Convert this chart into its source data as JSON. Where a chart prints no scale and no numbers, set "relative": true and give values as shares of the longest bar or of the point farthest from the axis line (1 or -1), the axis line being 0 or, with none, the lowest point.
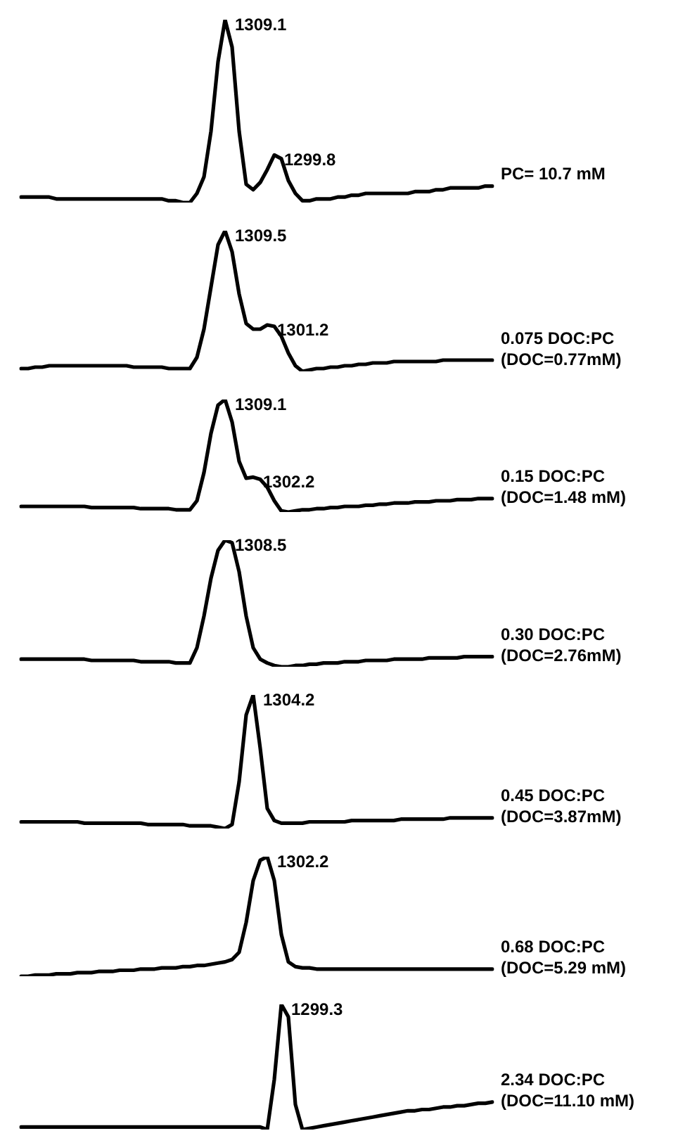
{
  "chart_data": [
    {
      "type": "line",
      "relative": true,
      "color": "#000000",
      "categories": [
        null,
        null,
        null,
        null,
        null,
        null,
        null,
        null,
        null,
        null,
        null,
        null,
        null,
        null,
        null,
        null,
        null,
        null,
        null,
        null,
        null,
        null,
        null,
        null,
        null,
        null,
        null,
        null,
        null,
        null,
        null,
        null,
        null,
        null,
        null,
        null,
        null,
        null,
        null,
        null,
        null,
        null,
        null,
        null,
        null,
        null,
        null,
        null,
        null,
        null,
        null,
        null,
        null,
        null,
        null,
        null,
        null,
        null,
        null,
        null,
        null,
        null,
        null,
        null,
        null,
        null,
        null,
        null
      ],
      "values": [
        0.03,
        0.03,
        0.03,
        0.03,
        0.03,
        0.02,
        0.02,
        0.02,
        0.02,
        0.02,
        0.02,
        0.02,
        0.02,
        0.02,
        0.02,
        0.02,
        0.02,
        0.02,
        0.02,
        0.02,
        0.02,
        0.01,
        0.01,
        0,
        0,
        0.05,
        0.14,
        0.39,
        0.77,
        1,
        0.85,
        0.39,
        0.1,
        0.07,
        0.11,
        0.18,
        0.26,
        0.24,
        0.12,
        0.05,
        0.01,
        0.01,
        0.02,
        0.02,
        0.02,
        0.03,
        0.03,
        0.04,
        0.04,
        0.05,
        0.05,
        0.05,
        0.05,
        0.05,
        0.05,
        0.05,
        0.06,
        0.06,
        0.06,
        0.07,
        0.07,
        0.08,
        0.08,
        0.08,
        0.08,
        0.08,
        0.09,
        0.09
      ],
      "title": "PC= 10.7 mM",
      "annotations": [
        "1309.1",
        "1299.8"
      ]
    },
    {
      "type": "line",
      "relative": true,
      "color": "#000000",
      "categories": [
        null,
        null,
        null,
        null,
        null,
        null,
        null,
        null,
        null,
        null,
        null,
        null,
        null,
        null,
        null,
        null,
        null,
        null,
        null,
        null,
        null,
        null,
        null,
        null,
        null,
        null,
        null,
        null,
        null,
        null,
        null,
        null,
        null,
        null,
        null,
        null,
        null,
        null,
        null,
        null,
        null,
        null,
        null,
        null,
        null,
        null,
        null,
        null,
        null,
        null,
        null,
        null,
        null,
        null,
        null,
        null,
        null,
        null,
        null,
        null,
        null,
        null,
        null,
        null,
        null,
        null,
        null,
        null
      ],
      "values": [
        0.02,
        0.02,
        0.03,
        0.03,
        0.04,
        0.04,
        0.04,
        0.04,
        0.04,
        0.04,
        0.04,
        0.04,
        0.04,
        0.04,
        0.04,
        0.04,
        0.03,
        0.03,
        0.03,
        0.03,
        0.03,
        0.02,
        0.02,
        0.02,
        0.02,
        0.1,
        0.3,
        0.6,
        0.9,
        1,
        0.85,
        0.55,
        0.34,
        0.3,
        0.3,
        0.33,
        0.32,
        0.25,
        0.13,
        0.04,
        0,
        0.01,
        0.02,
        0.02,
        0.03,
        0.03,
        0.04,
        0.04,
        0.05,
        0.05,
        0.06,
        0.06,
        0.06,
        0.07,
        0.07,
        0.07,
        0.07,
        0.07,
        0.07,
        0.07,
        0.08,
        0.08,
        0.08,
        0.08,
        0.08,
        0.08,
        0.08,
        0.08
      ],
      "title": "0.075 DOC:PC",
      "subtitle": "(DOC=0.77mM)",
      "annotations": [
        "1309.5",
        "1301.2"
      ]
    },
    {
      "type": "line",
      "relative": true,
      "color": "#000000",
      "categories": [
        null,
        null,
        null,
        null,
        null,
        null,
        null,
        null,
        null,
        null,
        null,
        null,
        null,
        null,
        null,
        null,
        null,
        null,
        null,
        null,
        null,
        null,
        null,
        null,
        null,
        null,
        null,
        null,
        null,
        null,
        null,
        null,
        null,
        null,
        null,
        null,
        null,
        null,
        null,
        null,
        null,
        null,
        null,
        null,
        null,
        null,
        null,
        null,
        null,
        null,
        null,
        null,
        null,
        null,
        null,
        null,
        null,
        null,
        null,
        null,
        null,
        null,
        null,
        null,
        null,
        null,
        null,
        null
      ],
      "values": [
        0.05,
        0.05,
        0.05,
        0.05,
        0.05,
        0.05,
        0.05,
        0.05,
        0.05,
        0.05,
        0.04,
        0.04,
        0.04,
        0.04,
        0.04,
        0.04,
        0.04,
        0.03,
        0.03,
        0.03,
        0.03,
        0.03,
        0.02,
        0.02,
        0.02,
        0.1,
        0.35,
        0.7,
        0.95,
        1,
        0.8,
        0.45,
        0.3,
        0.31,
        0.29,
        0.22,
        0.1,
        0.01,
        0,
        0.01,
        0.02,
        0.02,
        0.03,
        0.03,
        0.04,
        0.04,
        0.05,
        0.05,
        0.05,
        0.06,
        0.06,
        0.07,
        0.07,
        0.08,
        0.08,
        0.08,
        0.09,
        0.09,
        0.09,
        0.1,
        0.1,
        0.1,
        0.11,
        0.11,
        0.11,
        0.12,
        0.12,
        0.12
      ],
      "title": "0.15 DOC:PC",
      "subtitle": "(DOC=1.48 mM)",
      "annotations": [
        "1309.1",
        "1302.2"
      ]
    },
    {
      "type": "line",
      "relative": true,
      "color": "#000000",
      "categories": [
        null,
        null,
        null,
        null,
        null,
        null,
        null,
        null,
        null,
        null,
        null,
        null,
        null,
        null,
        null,
        null,
        null,
        null,
        null,
        null,
        null,
        null,
        null,
        null,
        null,
        null,
        null,
        null,
        null,
        null,
        null,
        null,
        null,
        null,
        null,
        null,
        null,
        null,
        null,
        null,
        null,
        null,
        null,
        null,
        null,
        null,
        null,
        null,
        null,
        null,
        null,
        null,
        null,
        null,
        null,
        null,
        null,
        null,
        null,
        null,
        null,
        null,
        null,
        null,
        null,
        null,
        null,
        null
      ],
      "values": [
        0.06,
        0.06,
        0.06,
        0.06,
        0.06,
        0.06,
        0.06,
        0.06,
        0.06,
        0.06,
        0.05,
        0.05,
        0.05,
        0.05,
        0.05,
        0.05,
        0.05,
        0.04,
        0.04,
        0.04,
        0.04,
        0.04,
        0.03,
        0.03,
        0.03,
        0.15,
        0.4,
        0.7,
        0.92,
        1,
        0.98,
        0.75,
        0.4,
        0.15,
        0.06,
        0.03,
        0.01,
        0,
        0,
        0.01,
        0.01,
        0.02,
        0.02,
        0.03,
        0.03,
        0.03,
        0.04,
        0.04,
        0.04,
        0.05,
        0.05,
        0.05,
        0.05,
        0.06,
        0.06,
        0.06,
        0.06,
        0.06,
        0.07,
        0.07,
        0.07,
        0.07,
        0.07,
        0.08,
        0.08,
        0.08,
        0.08,
        0.08
      ],
      "title": "0.30 DOC:PC",
      "subtitle": "(DOC=2.76mM)",
      "annotations": [
        "1308.5"
      ]
    },
    {
      "type": "line",
      "relative": true,
      "color": "#000000",
      "categories": [
        null,
        null,
        null,
        null,
        null,
        null,
        null,
        null,
        null,
        null,
        null,
        null,
        null,
        null,
        null,
        null,
        null,
        null,
        null,
        null,
        null,
        null,
        null,
        null,
        null,
        null,
        null,
        null,
        null,
        null,
        null,
        null,
        null,
        null,
        null,
        null,
        null,
        null,
        null,
        null,
        null,
        null,
        null,
        null,
        null,
        null,
        null,
        null,
        null,
        null,
        null,
        null,
        null,
        null,
        null,
        null,
        null,
        null,
        null,
        null,
        null,
        null,
        null,
        null,
        null,
        null,
        null,
        null
      ],
      "values": [
        0.05,
        0.05,
        0.05,
        0.05,
        0.05,
        0.05,
        0.05,
        0.05,
        0.05,
        0.04,
        0.04,
        0.04,
        0.04,
        0.04,
        0.04,
        0.04,
        0.04,
        0.04,
        0.03,
        0.03,
        0.03,
        0.03,
        0.03,
        0.03,
        0.02,
        0.02,
        0.02,
        0.02,
        0.01,
        0,
        0.03,
        0.35,
        0.85,
        1,
        0.6,
        0.15,
        0.06,
        0.04,
        0.04,
        0.04,
        0.04,
        0.05,
        0.05,
        0.05,
        0.05,
        0.05,
        0.05,
        0.06,
        0.06,
        0.06,
        0.06,
        0.06,
        0.06,
        0.06,
        0.07,
        0.07,
        0.07,
        0.07,
        0.07,
        0.07,
        0.07,
        0.08,
        0.08,
        0.08,
        0.08,
        0.08,
        0.08,
        0.08
      ],
      "title": "0.45 DOC:PC",
      "subtitle": "(DOC=3.87mM)",
      "annotations": [
        "1304.2"
      ]
    },
    {
      "type": "line",
      "relative": true,
      "color": "#000000",
      "categories": [
        null,
        null,
        null,
        null,
        null,
        null,
        null,
        null,
        null,
        null,
        null,
        null,
        null,
        null,
        null,
        null,
        null,
        null,
        null,
        null,
        null,
        null,
        null,
        null,
        null,
        null,
        null,
        null,
        null,
        null,
        null,
        null,
        null,
        null,
        null,
        null,
        null,
        null,
        null,
        null,
        null,
        null,
        null,
        null,
        null,
        null,
        null,
        null,
        null,
        null,
        null,
        null,
        null,
        null,
        null,
        null,
        null,
        null,
        null,
        null,
        null,
        null,
        null,
        null,
        null,
        null,
        null,
        null
      ],
      "values": [
        0,
        0,
        0.01,
        0.01,
        0.01,
        0.02,
        0.02,
        0.02,
        0.03,
        0.03,
        0.03,
        0.04,
        0.04,
        0.04,
        0.05,
        0.05,
        0.05,
        0.06,
        0.06,
        0.06,
        0.07,
        0.07,
        0.07,
        0.08,
        0.08,
        0.09,
        0.09,
        0.1,
        0.11,
        0.12,
        0.14,
        0.2,
        0.45,
        0.8,
        0.97,
        1,
        0.8,
        0.35,
        0.12,
        0.08,
        0.07,
        0.07,
        0.06,
        0.06,
        0.06,
        0.06,
        0.06,
        0.06,
        0.06,
        0.06,
        0.06,
        0.06,
        0.06,
        0.06,
        0.06,
        0.06,
        0.06,
        0.06,
        0.06,
        0.06,
        0.06,
        0.06,
        0.06,
        0.06,
        0.06,
        0.06,
        0.06,
        0.06
      ],
      "title": "0.68 DOC:PC",
      "subtitle": "(DOC=5.29 mM)",
      "annotations": [
        "1302.2"
      ]
    },
    {
      "type": "line",
      "relative": true,
      "color": "#000000",
      "categories": [
        null,
        null,
        null,
        null,
        null,
        null,
        null,
        null,
        null,
        null,
        null,
        null,
        null,
        null,
        null,
        null,
        null,
        null,
        null,
        null,
        null,
        null,
        null,
        null,
        null,
        null,
        null,
        null,
        null,
        null,
        null,
        null,
        null,
        null,
        null,
        null,
        null,
        null,
        null,
        null,
        null,
        null,
        null,
        null,
        null,
        null,
        null,
        null,
        null,
        null,
        null,
        null,
        null,
        null,
        null,
        null,
        null,
        null,
        null,
        null,
        null,
        null,
        null,
        null,
        null,
        null,
        null,
        null
      ],
      "values": [
        0.02,
        0.02,
        0.02,
        0.02,
        0.02,
        0.02,
        0.02,
        0.02,
        0.02,
        0.02,
        0.02,
        0.02,
        0.02,
        0.02,
        0.02,
        0.02,
        0.02,
        0.02,
        0.02,
        0.02,
        0.02,
        0.02,
        0.02,
        0.02,
        0.02,
        0.02,
        0.02,
        0.02,
        0.02,
        0.02,
        0.02,
        0.02,
        0.02,
        0.02,
        0.02,
        0,
        0.4,
        1,
        0.9,
        0.2,
        0,
        0.01,
        0.02,
        0.03,
        0.04,
        0.05,
        0.06,
        0.07,
        0.08,
        0.09,
        0.1,
        0.11,
        0.12,
        0.13,
        0.14,
        0.15,
        0.15,
        0.16,
        0.16,
        0.17,
        0.18,
        0.18,
        0.19,
        0.19,
        0.2,
        0.21,
        0.21,
        0.22
      ],
      "title": "2.34 DOC:PC",
      "subtitle": "(DOC=11.10 mM)",
      "annotations": [
        "1299.3"
      ]
    }
  ]
}
